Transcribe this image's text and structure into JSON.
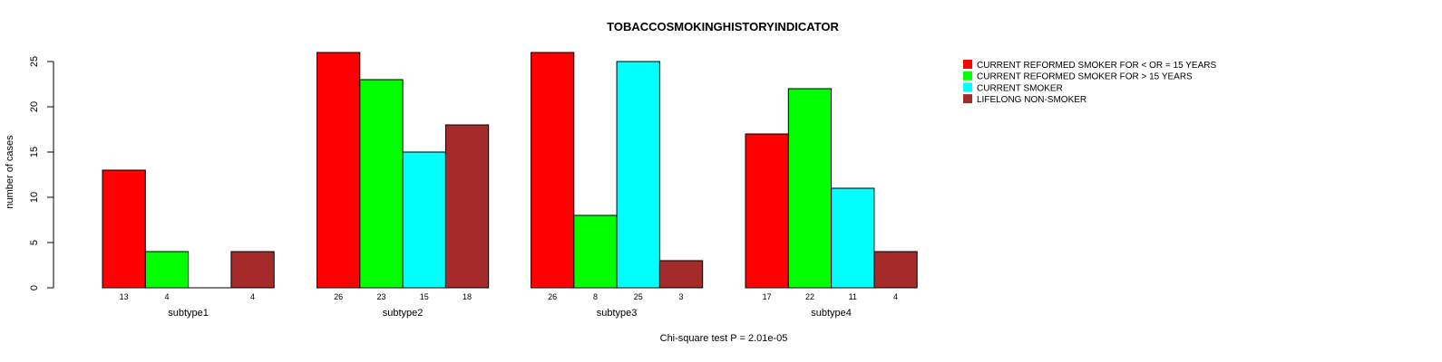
{
  "chart_data": {
    "type": "bar",
    "title": "TOBACCOSMOKINGHISTORYINDICATOR",
    "xlabel": "",
    "ylabel": "number of cases",
    "ylim": [
      0,
      26
    ],
    "yticks": [
      0,
      5,
      10,
      15,
      20,
      25
    ],
    "grid": false,
    "legend_position": "top-right",
    "categories": [
      "subtype1",
      "subtype2",
      "subtype3",
      "subtype4"
    ],
    "series": [
      {
        "name": "CURRENT REFORMED SMOKER FOR < OR = 15 YEARS",
        "color": "#ff0000",
        "values": [
          13,
          26,
          26,
          17
        ]
      },
      {
        "name": "CURRENT REFORMED SMOKER FOR > 15 YEARS",
        "color": "#00ff00",
        "values": [
          4,
          23,
          8,
          22
        ]
      },
      {
        "name": "CURRENT SMOKER",
        "color": "#00ffff",
        "values": [
          0,
          15,
          25,
          11
        ]
      },
      {
        "name": "LIFELONG NON-SMOKER",
        "color": "#a52a2a",
        "values": [
          4,
          18,
          3,
          4
        ]
      }
    ],
    "value_labels": [
      [
        "13",
        "4",
        "",
        "4"
      ],
      [
        "26",
        "23",
        "15",
        "18"
      ],
      [
        "26",
        "8",
        "25",
        "3"
      ],
      [
        "17",
        "22",
        "11",
        "4"
      ]
    ],
    "footnote": "Chi-square test P = 2.01e-05"
  }
}
